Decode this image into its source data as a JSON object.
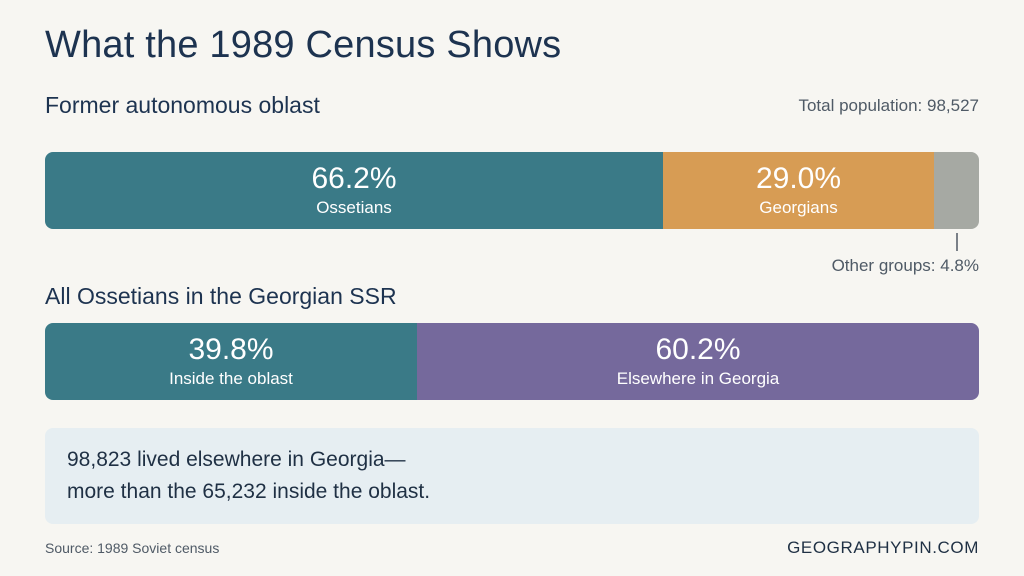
{
  "title": "What the 1989 Census Shows",
  "colors": {
    "ossetians": "#3a7a87",
    "georgians": "#d79c54",
    "other": "#a6a9a3",
    "elsewhere": "#75699c"
  },
  "chart_data": [
    {
      "type": "bar",
      "stacked": true,
      "orientation": "horizontal",
      "title": "Former autonomous oblast",
      "annotation": "Total population: 98,527",
      "series": [
        {
          "name": "Ossetians",
          "value": 66.2,
          "label": "66.2%",
          "color": "#3a7a87"
        },
        {
          "name": "Georgians",
          "value": 29.0,
          "label": "29.0%",
          "color": "#d79c54"
        },
        {
          "name": "Other groups",
          "value": 4.8,
          "label": "Other groups: 4.8%",
          "color": "#a6a9a3"
        }
      ]
    },
    {
      "type": "bar",
      "stacked": true,
      "orientation": "horizontal",
      "title": "All Ossetians in the Georgian SSR",
      "series": [
        {
          "name": "Inside the oblast",
          "value": 39.8,
          "label": "39.8%",
          "color": "#3a7a87"
        },
        {
          "name": "Elsewhere in Georgia",
          "value": 60.2,
          "label": "60.2%",
          "color": "#75699c"
        }
      ]
    }
  ],
  "note": {
    "line1": "98,823 lived elsewhere in Georgia—",
    "line2": "more than the 65,232 inside the oblast."
  },
  "source": "Source: 1989 Soviet census",
  "brand": "GEOGRAPHYPIN.COM"
}
